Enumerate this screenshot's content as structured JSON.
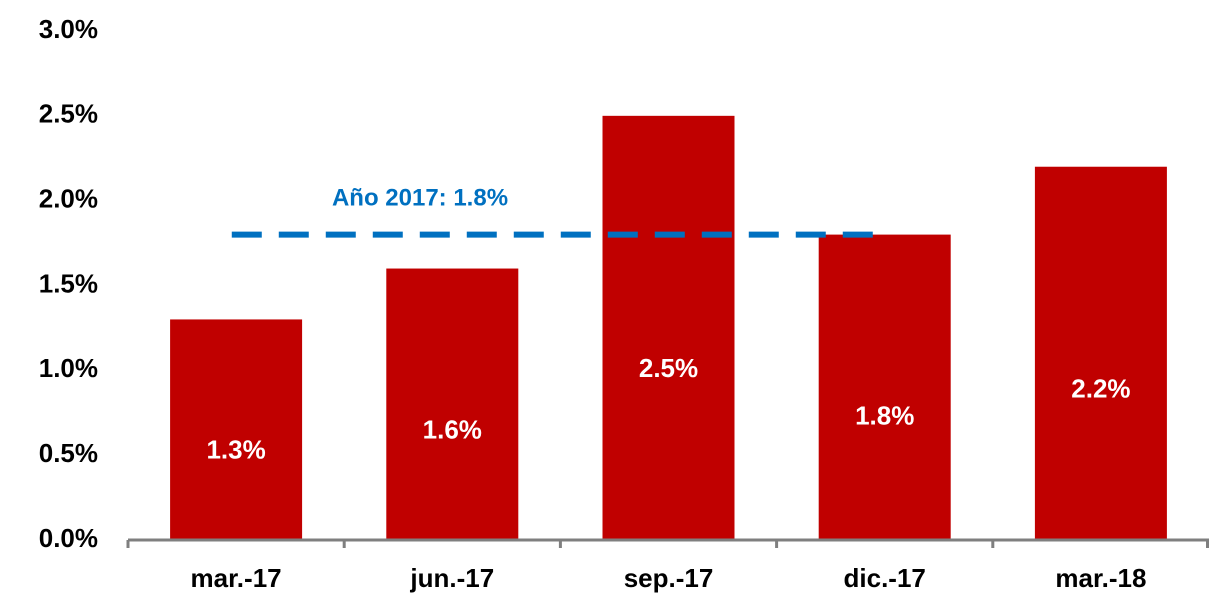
{
  "chart_data": {
    "type": "bar",
    "categories": [
      "mar.-17",
      "jun.-17",
      "sep.-17",
      "dic.-17",
      "mar.-18"
    ],
    "values": [
      1.3,
      1.6,
      2.5,
      1.8,
      2.2
    ],
    "value_labels": [
      "1.3%",
      "1.6%",
      "2.5%",
      "1.8%",
      "2.2%"
    ],
    "color": "#c00000",
    "ylim": [
      0,
      3
    ],
    "yticks": [
      {
        "value": 0,
        "label": "0.0%"
      },
      {
        "value": 0.5,
        "label": "0.5%"
      },
      {
        "value": 1,
        "label": "1.0%"
      },
      {
        "value": 1.5,
        "label": "1.5%"
      },
      {
        "value": 2,
        "label": "2.0%"
      },
      {
        "value": 2.5,
        "label": "2.5%"
      },
      {
        "value": 3,
        "label": "3.0%"
      }
    ],
    "grid": false,
    "reference_line": {
      "value": 1.8,
      "label": "Año 2017: 1.8%",
      "color": "#0070c0"
    }
  }
}
